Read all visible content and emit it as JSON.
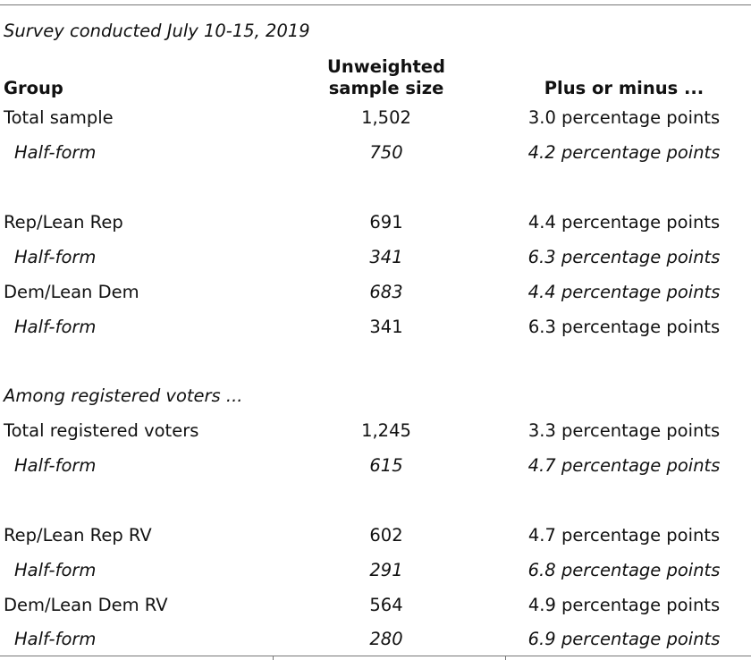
{
  "caption": "Survey conducted July 10-15, 2019",
  "header": {
    "group": "Group",
    "sample_size": [
      "Unweighted",
      "sample size"
    ],
    "margin": "Plus or minus ..."
  },
  "rows": [
    [
      "Total sample",
      "1,502",
      "3.0 percentage points"
    ],
    [
      "Half-form",
      "750",
      "4.2 percentage points"
    ],
    [
      "Rep/Lean Rep",
      "691",
      "4.4 percentage points"
    ],
    [
      "Half-form",
      "341",
      "6.3 percentage points"
    ],
    [
      "Dem/Lean Dem",
      "683",
      "4.4 percentage points"
    ],
    [
      "Half-form",
      "341",
      "6.3 percentage points"
    ],
    [
      "Total registered voters",
      "1,245",
      "3.3 percentage points"
    ],
    [
      "Half-form",
      "615",
      "4.7 percentage points"
    ],
    [
      "Rep/Lean Rep RV",
      "602",
      "4.7 percentage points"
    ],
    [
      "Half-form",
      "291",
      "6.8 percentage points"
    ],
    [
      "Dem/Lean Dem RV",
      "564",
      "4.9 percentage points"
    ],
    [
      "Half-form",
      "280",
      "6.9 percentage points"
    ]
  ],
  "note": "Among registered voters ..."
}
